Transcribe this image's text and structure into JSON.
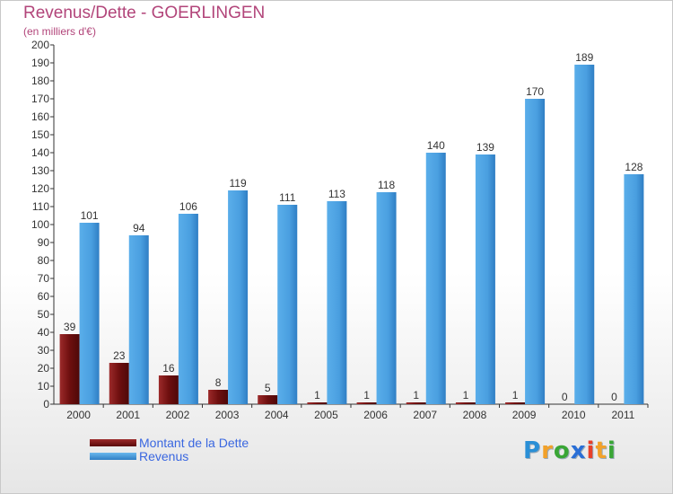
{
  "header": {
    "title": "Revenus/Dette - GOERLINGEN",
    "subtitle": "(en milliers d'€)"
  },
  "logo": {
    "letters": [
      "P",
      "r",
      "o",
      "x",
      "i",
      "t",
      "i"
    ],
    "colors": [
      "#2a8fd6",
      "#f2a12a",
      "#3aa636",
      "#2a6fd6",
      "#e8402a",
      "#f2a12a",
      "#3aa636"
    ]
  },
  "chart_data": {
    "type": "bar",
    "categories": [
      "2000",
      "2001",
      "2002",
      "2003",
      "2004",
      "2005",
      "2006",
      "2007",
      "2008",
      "2009",
      "2010",
      "2011"
    ],
    "series": [
      {
        "name": "Montant de la Dette",
        "color": "#7a1414",
        "values": [
          39,
          23,
          16,
          8,
          5,
          1,
          1,
          1,
          1,
          1,
          0,
          0
        ]
      },
      {
        "name": "Revenus",
        "color": "#4ea3e4",
        "values": [
          101,
          94,
          106,
          119,
          111,
          113,
          118,
          140,
          139,
          170,
          189,
          128
        ]
      }
    ],
    "title": "Revenus/Dette - GOERLINGEN",
    "ylabel": "(en milliers d'€)",
    "ylim": [
      0,
      200
    ],
    "ytick_step": 10,
    "grid": false,
    "legend_position": "bottom-left"
  }
}
